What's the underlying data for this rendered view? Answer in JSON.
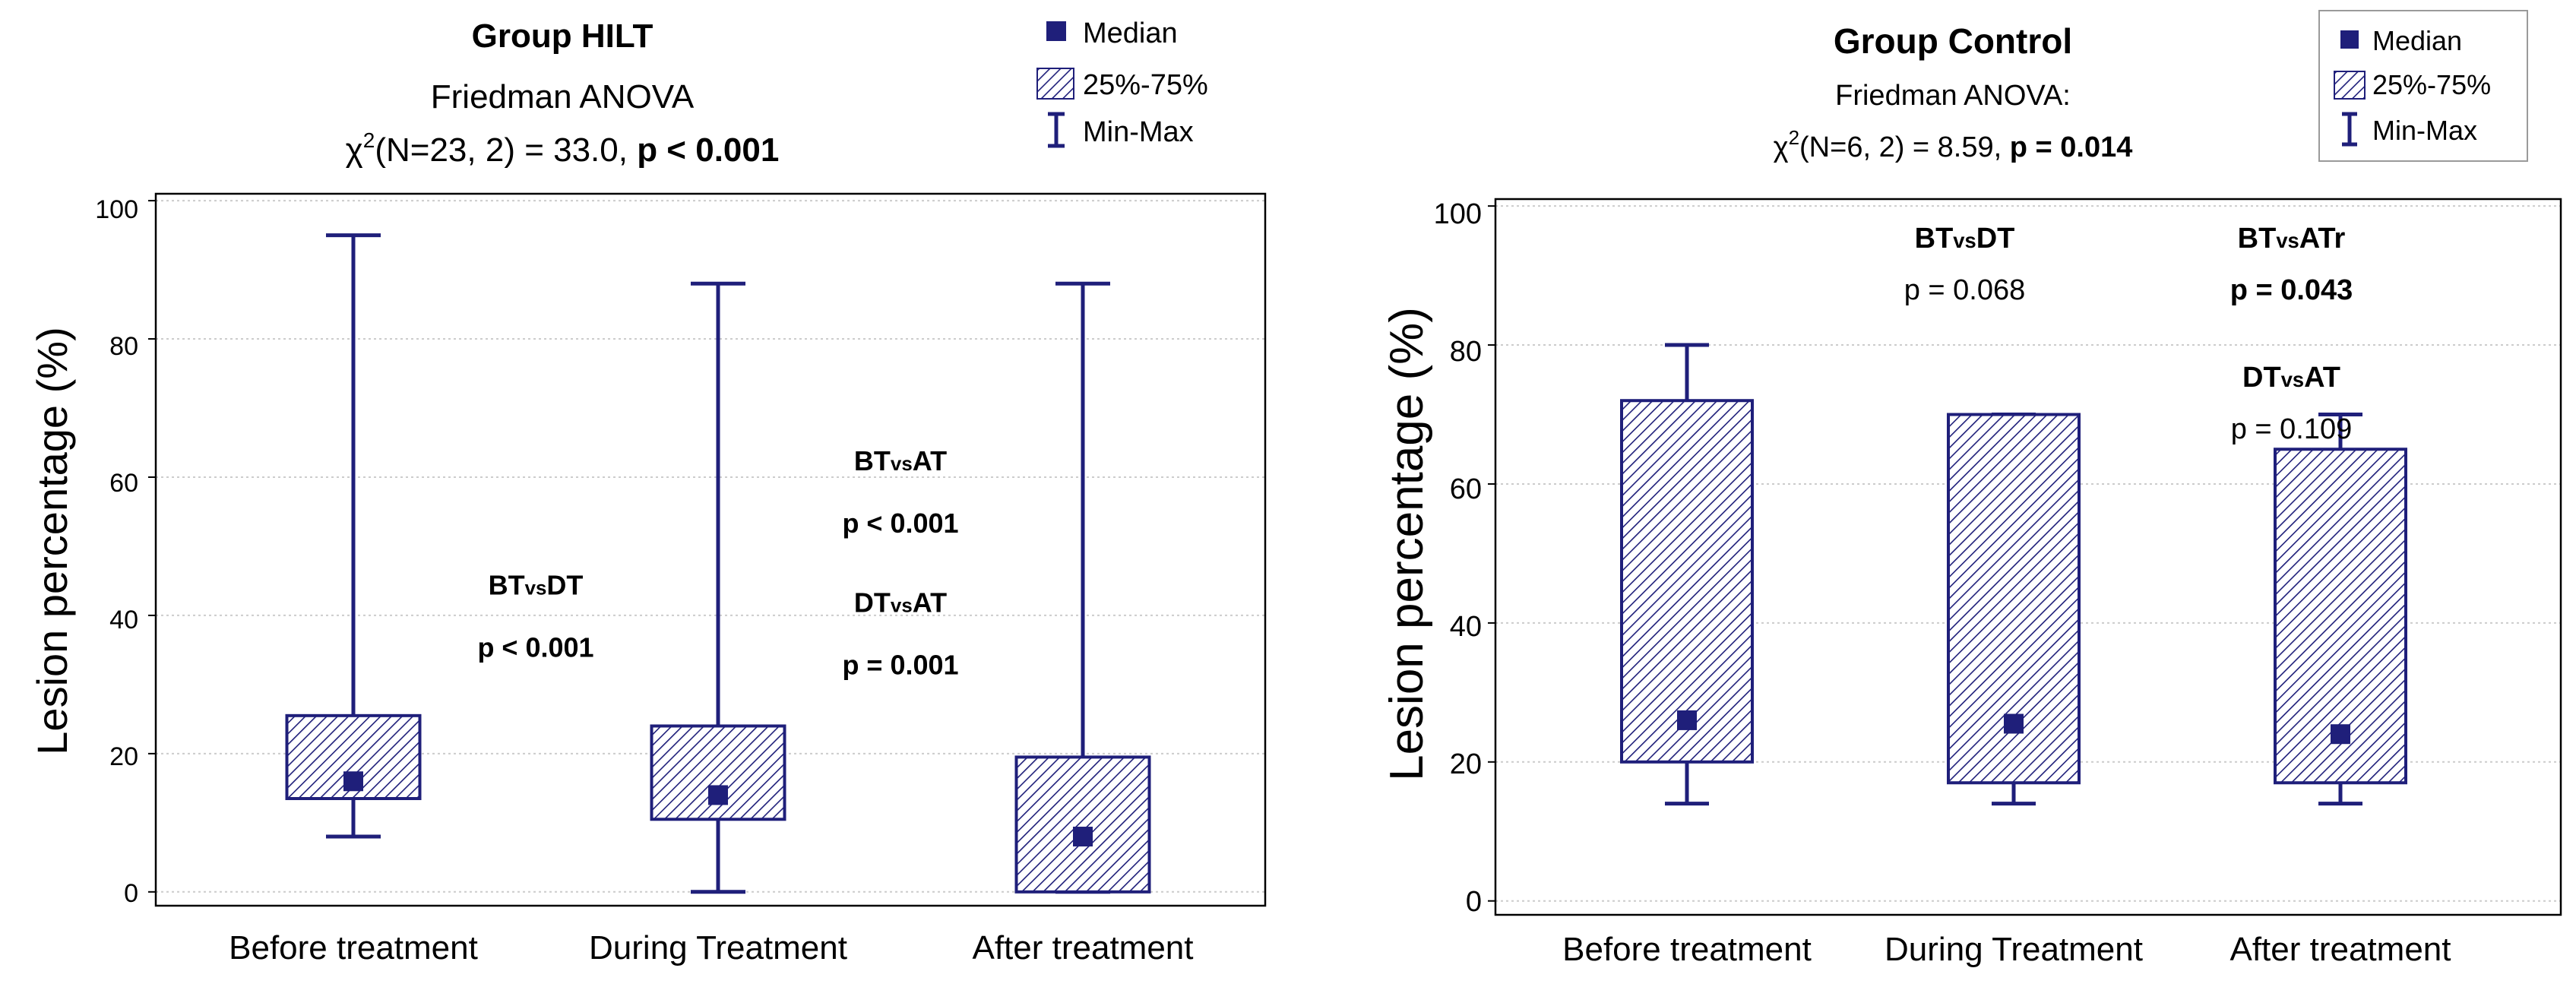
{
  "colors": {
    "box": "#1f1f7a",
    "grid": "#cccccc",
    "frame": "#000000"
  },
  "chart_data": [
    {
      "type": "box",
      "title": "Group HILT",
      "subtitle": "Friedman ANOVA",
      "stat_pre": "χ",
      "stat_sup": "2",
      "stat_mid": "(N=23, 2) = 33.0, ",
      "stat_p": "p < 0.001",
      "ylabel": "Lesion percentage (%)",
      "ylim": [
        -2,
        101
      ],
      "yticks": [
        0,
        20,
        40,
        60,
        80,
        100
      ],
      "yticklabels": [
        "0",
        "20",
        "40",
        "60",
        "80",
        "100"
      ],
      "grid": true,
      "legend": {
        "position": "top-right",
        "median": "Median",
        "iqr": "25%-75%",
        "range": "Min-Max"
      },
      "categories": [
        "Before treatment",
        "During Treatment",
        "After treatment"
      ],
      "boxes": [
        {
          "min": 8,
          "q1": 13.5,
          "median": 16,
          "q3": 25.5,
          "max": 95
        },
        {
          "min": 0,
          "q1": 10.5,
          "median": 14,
          "q3": 24,
          "max": 88
        },
        {
          "min": 0,
          "q1": 0,
          "median": 8,
          "q3": 19.5,
          "max": 88
        }
      ],
      "annotations": [
        {
          "label": "BT",
          "small": "vs",
          "label2": "DT",
          "p": "p < 0.001",
          "x": 1.5,
          "y": 43,
          "label_bold": true,
          "p_bold": true
        },
        {
          "label": "BT",
          "small": "vs",
          "label2": "AT",
          "p": "p < 0.001",
          "x": 2.5,
          "y": 61,
          "label_bold": true,
          "p_bold": true
        },
        {
          "label": "DT",
          "small": "vs",
          "label2": "AT",
          "p": "p = 0.001",
          "x": 2.5,
          "y": 40.5,
          "label_bold": true,
          "p_bold": true
        }
      ]
    },
    {
      "type": "box",
      "title": "Group Control",
      "subtitle": "Friedman ANOVA:",
      "stat_pre": "χ",
      "stat_sup": "2",
      "stat_mid": "(N=6, 2) = 8.59, ",
      "stat_p": "p = 0.014",
      "ylabel": "Lesion percentage (%)",
      "ylim": [
        -2,
        101
      ],
      "yticks": [
        0,
        20,
        40,
        60,
        80,
        100
      ],
      "yticklabels": [
        "0",
        "20",
        "40",
        "60",
        "80",
        "100"
      ],
      "grid": true,
      "legend": {
        "position": "top-right",
        "median": "Median",
        "iqr": "25%-75%",
        "range": "Min-Max"
      },
      "categories": [
        "Before treatment",
        "During Treatment",
        "After treatment"
      ],
      "boxes": [
        {
          "min": 14,
          "q1": 20,
          "median": 26,
          "q3": 72,
          "max": 80
        },
        {
          "min": 14,
          "q1": 17,
          "median": 25.5,
          "q3": 70,
          "max": 70
        },
        {
          "min": 14,
          "q1": 17,
          "median": 24,
          "q3": 65,
          "max": 70
        }
      ],
      "annotations": [
        {
          "label": "BT",
          "small": "vs",
          "label2": "DT",
          "p": "p = 0.068",
          "x": 1.85,
          "y": 94,
          "label_bold": true,
          "p_bold": false
        },
        {
          "label": "BT",
          "small": "vs",
          "label2": "AT",
          "suffix": "r",
          "p": "p = 0.043",
          "x": 2.85,
          "y": 94,
          "label_bold": true,
          "p_bold": true
        },
        {
          "label": "DT",
          "small": "vs",
          "label2": "AT",
          "p": "p = 0.109",
          "x": 2.85,
          "y": 74,
          "label_bold": true,
          "p_bold": false
        }
      ]
    }
  ]
}
